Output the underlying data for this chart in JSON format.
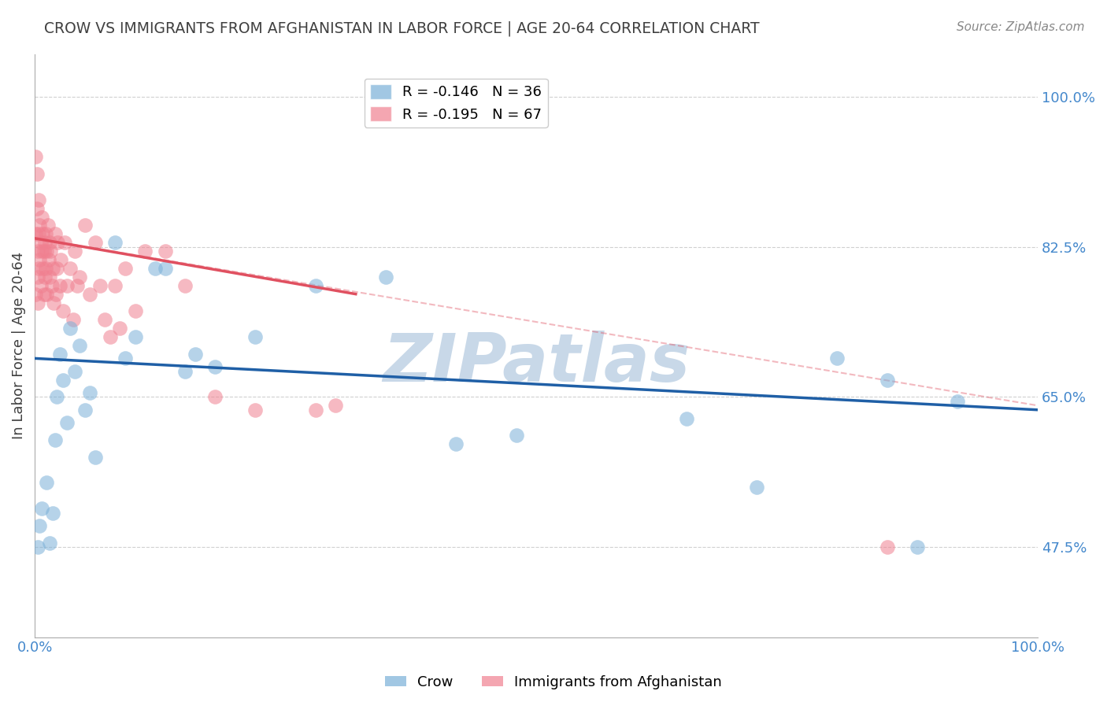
{
  "title": "CROW VS IMMIGRANTS FROM AFGHANISTAN IN LABOR FORCE | AGE 20-64 CORRELATION CHART",
  "source": "Source: ZipAtlas.com",
  "xlabel": "",
  "ylabel": "In Labor Force | Age 20-64",
  "xlim": [
    0.0,
    1.0
  ],
  "ylim": [
    0.37,
    1.05
  ],
  "yticks": [
    0.475,
    0.65,
    0.825,
    1.0
  ],
  "ytick_labels": [
    "47.5%",
    "65.0%",
    "82.5%",
    "100.0%"
  ],
  "xticks": [
    0.0,
    0.25,
    0.5,
    0.75,
    1.0
  ],
  "xtick_labels": [
    "0.0%",
    "",
    "",
    "",
    "100.0%"
  ],
  "legend_entries": [
    {
      "label": "R = -0.146   N = 36",
      "color": "#a8c4e0"
    },
    {
      "label": "R = -0.195   N = 67",
      "color": "#f4a0b0"
    }
  ],
  "crow_color": "#7ab0d8",
  "afghan_color": "#f08090",
  "crow_line_color": "#1f5fa6",
  "afghan_line_color": "#e05060",
  "watermark": "ZIPatlas",
  "watermark_color": "#c8d8e8",
  "background_color": "#ffffff",
  "grid_color": "#d0d0d0",
  "title_color": "#404040",
  "axis_label_color": "#404040",
  "tick_label_color": "#4488cc",
  "crow_x": [
    0.003,
    0.005,
    0.007,
    0.012,
    0.015,
    0.018,
    0.02,
    0.022,
    0.025,
    0.028,
    0.032,
    0.035,
    0.04,
    0.045,
    0.05,
    0.055,
    0.06,
    0.08,
    0.09,
    0.1,
    0.12,
    0.13,
    0.15,
    0.16,
    0.18,
    0.22,
    0.28,
    0.35,
    0.42,
    0.48,
    0.65,
    0.72,
    0.8,
    0.85,
    0.88,
    0.92
  ],
  "crow_y": [
    0.475,
    0.5,
    0.52,
    0.55,
    0.48,
    0.515,
    0.6,
    0.65,
    0.7,
    0.67,
    0.62,
    0.73,
    0.68,
    0.71,
    0.635,
    0.655,
    0.58,
    0.83,
    0.695,
    0.72,
    0.8,
    0.8,
    0.68,
    0.7,
    0.685,
    0.72,
    0.78,
    0.79,
    0.595,
    0.605,
    0.625,
    0.545,
    0.695,
    0.67,
    0.475,
    0.645
  ],
  "afghan_x": [
    0.001,
    0.001,
    0.001,
    0.002,
    0.002,
    0.003,
    0.003,
    0.003,
    0.004,
    0.004,
    0.004,
    0.005,
    0.005,
    0.006,
    0.006,
    0.007,
    0.007,
    0.008,
    0.008,
    0.009,
    0.009,
    0.01,
    0.01,
    0.011,
    0.011,
    0.012,
    0.012,
    0.013,
    0.014,
    0.015,
    0.015,
    0.016,
    0.017,
    0.018,
    0.019,
    0.02,
    0.021,
    0.022,
    0.023,
    0.025,
    0.026,
    0.028,
    0.03,
    0.032,
    0.035,
    0.038,
    0.04,
    0.042,
    0.045,
    0.05,
    0.055,
    0.06,
    0.065,
    0.07,
    0.075,
    0.08,
    0.085,
    0.09,
    0.1,
    0.11,
    0.13,
    0.15,
    0.18,
    0.22,
    0.28,
    0.3,
    0.85
  ],
  "afghan_y": [
    0.93,
    0.84,
    0.77,
    0.91,
    0.87,
    0.82,
    0.79,
    0.76,
    0.88,
    0.84,
    0.8,
    0.85,
    0.81,
    0.83,
    0.78,
    0.86,
    0.82,
    0.84,
    0.8,
    0.82,
    0.77,
    0.83,
    0.79,
    0.84,
    0.8,
    0.82,
    0.77,
    0.85,
    0.81,
    0.83,
    0.79,
    0.82,
    0.78,
    0.8,
    0.76,
    0.84,
    0.77,
    0.8,
    0.83,
    0.78,
    0.81,
    0.75,
    0.83,
    0.78,
    0.8,
    0.74,
    0.82,
    0.78,
    0.79,
    0.85,
    0.77,
    0.83,
    0.78,
    0.74,
    0.72,
    0.78,
    0.73,
    0.8,
    0.75,
    0.82,
    0.82,
    0.78,
    0.65,
    0.635,
    0.635,
    0.64,
    0.475
  ],
  "crow_line_x": [
    0.0,
    1.0
  ],
  "crow_line_y": [
    0.695,
    0.635
  ],
  "afghan_line_x": [
    0.0,
    0.32
  ],
  "afghan_line_y": [
    0.835,
    0.77
  ]
}
